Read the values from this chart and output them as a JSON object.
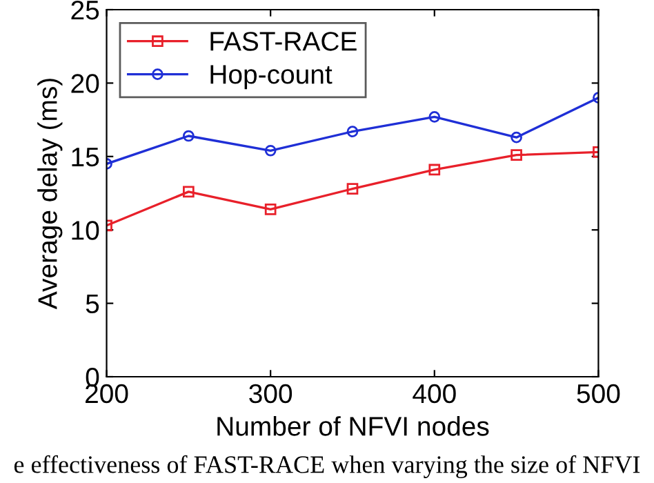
{
  "chart_data": {
    "type": "line",
    "xlabel": "Number of NFVI nodes",
    "ylabel": "Average delay (ms)",
    "x": [
      200,
      250,
      300,
      350,
      400,
      450,
      500
    ],
    "series": [
      {
        "name": "FAST-RACE",
        "color": "#e8202a",
        "marker": "square",
        "values": [
          10.3,
          12.6,
          11.4,
          12.8,
          14.1,
          15.1,
          15.3
        ]
      },
      {
        "name": "Hop-count",
        "color": "#1f2fd6",
        "marker": "circle",
        "values": [
          14.5,
          16.4,
          15.4,
          16.7,
          17.7,
          16.3,
          19.0
        ]
      }
    ],
    "xlim": [
      200,
      500
    ],
    "xticks": [
      200,
      300,
      400,
      500
    ],
    "ylim": [
      0,
      25
    ],
    "yticks": [
      0,
      5,
      10,
      15,
      20,
      25
    ],
    "grid": false,
    "legend": "top left",
    "line_style": "solid",
    "annotations": [
      "e effectiveness of FAST-RACE when varying the size of NFVI"
    ]
  }
}
